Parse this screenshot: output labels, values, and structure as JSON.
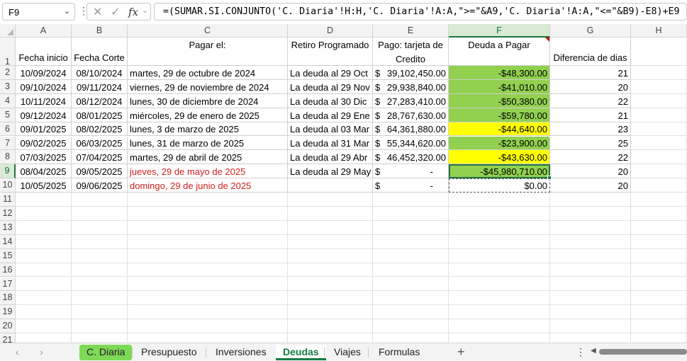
{
  "formula_bar": {
    "name_box": "F9",
    "formula": "=(SUMAR.SI.CONJUNTO('C. Diaria'!H:H,'C. Diaria'!A:A,\">=\"&A9,'C. Diaria'!A:A,\"<=\"&B9)-E8)+E9"
  },
  "columns": [
    "A",
    "B",
    "C",
    "D",
    "E",
    "F",
    "G",
    "H"
  ],
  "row_numbers": [
    "1",
    "2",
    "3",
    "4",
    "5",
    "6",
    "7",
    "8",
    "9",
    "10",
    "11",
    "12",
    "13",
    "14",
    "15",
    "16",
    "17",
    "18",
    "19",
    "20",
    "21"
  ],
  "headers": {
    "a": "Fecha inicio",
    "b": "Fecha Corte",
    "c": "Pagar el:",
    "d": "Retiro Programado",
    "e": "Pago: tarjeta de Credito",
    "f": "Deuda a Pagar",
    "g": "Diferencia de dias"
  },
  "rows": [
    {
      "a": "10/09/2024",
      "b": "08/10/2024",
      "c": "martes, 29 de octubre de 2024",
      "d": "La deuda al 29 Oct",
      "e_sym": "$",
      "e": "39,102,450.00",
      "f": "-$48,300.00",
      "g": "21"
    },
    {
      "a": "09/10/2024",
      "b": "09/11/2024",
      "c": "viernes, 29 de noviembre de 2024",
      "d": "La deuda al 29 Nov",
      "e_sym": "$",
      "e": "29,938,840.00",
      "f": "-$41,010.00",
      "g": "20"
    },
    {
      "a": "10/11/2024",
      "b": "08/12/2024",
      "c": "lunes, 30 de diciembre de 2024",
      "d": "La deuda al 30 Dic",
      "e_sym": "$",
      "e": "27,283,410.00",
      "f": "-$50,380.00",
      "g": "22"
    },
    {
      "a": "09/12/2024",
      "b": "08/01/2025",
      "c": "miércoles, 29 de enero de 2025",
      "d": "La deuda al 29 Ene",
      "e_sym": "$",
      "e": "28,767,630.00",
      "f": "-$59,780.00",
      "g": "21"
    },
    {
      "a": "09/01/2025",
      "b": "08/02/2025",
      "c": "lunes, 3 de marzo de 2025",
      "d": "La deuda al 03 Mar",
      "e_sym": "$",
      "e": "64,361,880.00",
      "f": "-$44,640.00",
      "g": "23"
    },
    {
      "a": "09/02/2025",
      "b": "06/03/2025",
      "c": "lunes, 31 de marzo de 2025",
      "d": "La deuda al 31 Mar",
      "e_sym": "$",
      "e": "55,344,620.00",
      "f": "-$23,900.00",
      "g": "25"
    },
    {
      "a": "07/03/2025",
      "b": "07/04/2025",
      "c": "martes, 29 de abril de 2025",
      "d": "La deuda al 29 Abr",
      "e_sym": "$",
      "e": "46,452,320.00",
      "f": "-$43,630.00",
      "g": "22"
    },
    {
      "a": "08/04/2025",
      "b": "09/05/2025",
      "c": "jueves, 29 de mayo de 2025",
      "d": "La deuda al 29 May",
      "e_sym": "$",
      "e": "-",
      "f": "-$45,980,710.00",
      "g": "20"
    },
    {
      "a": "10/05/2025",
      "b": "09/06/2025",
      "c": "domingo, 29 de junio de 2025",
      "d": "",
      "e_sym": "$",
      "e": "-",
      "f": "$0.00",
      "g": "20"
    }
  ],
  "fill_colors": {
    "green": "#92d050",
    "yellow": "#ffff00",
    "accent": "#217346",
    "red_text": "#d01f1f"
  },
  "f_fill": [
    "green",
    "green",
    "green",
    "green",
    "yellow",
    "green",
    "yellow",
    "green",
    "none"
  ],
  "red_c_rows": [
    7,
    8
  ],
  "sheet_tabs": [
    "C. Diaria",
    "Presupuesto",
    "Inversiones",
    "Deudas",
    "Viajes",
    "Formulas"
  ],
  "active_tab": "Deudas",
  "icons": {
    "name_box_arrow": "chevron-down-icon",
    "cancel": "close-icon",
    "enter": "check-icon",
    "function": "fx-icon",
    "prev_sheet": "chevron-left-icon",
    "next_sheet": "chevron-right-icon",
    "add_sheet": "plus-icon"
  }
}
